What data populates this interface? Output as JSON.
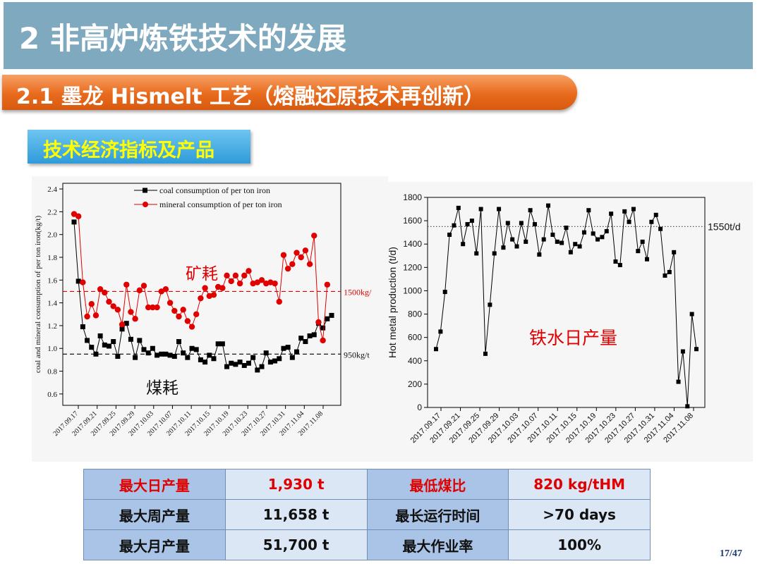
{
  "header": {
    "title": "2 非高炉炼铁技术的发展",
    "subtitle": "2.1 墨龙 Hismelt 工艺（熔融还原技术再创新）",
    "section_label": "技术经济指标及产品"
  },
  "colors": {
    "title_bar": "#7FA9BF",
    "subtitle_bar": "#E86A1C",
    "label_bar": "#2F9BDA",
    "label_text": "#FFFF00",
    "coal_series": "#000000",
    "mineral_series": "#E00000"
  },
  "chart_data": [
    {
      "type": "line",
      "ylabel": "coal and mineral consumption of per ton iron(kg/t)",
      "ylim": [
        0.5,
        2.45
      ],
      "yticks": [
        "0.6",
        "0.8",
        "1.0",
        "1.2",
        "1.4",
        "1.6",
        "1.8",
        "2.0",
        "2.2",
        "2.4"
      ],
      "xticks": [
        "2017.09.17",
        "2017.09.21",
        "2017.09.25",
        "2017.09.29",
        "2017.10.03",
        "2017.10.07",
        "2017.10.11",
        "2017.10.15",
        "2017.10.19",
        "2017.10.23",
        "2017.10.27",
        "2017.10.31",
        "2017.11.04",
        "2017.11.08"
      ],
      "legend_placement": "top-left",
      "series": [
        {
          "name": "coal consumption of per ton iron",
          "marker": "square",
          "color": "#000000",
          "values": [
            2.11,
            1.59,
            1.19,
            1.07,
            1.01,
            0.95,
            1.11,
            1.03,
            1.02,
            1.06,
            0.93,
            1.17,
            1.22,
            1.08,
            0.92,
            1.07,
            0.99,
            0.96,
            1.0,
            0.94,
            0.95,
            0.95,
            0.94,
            0.93,
            1.06,
            0.96,
            0.92,
            1.0,
            0.99,
            0.9,
            0.88,
            0.94,
            0.91,
            1.04,
            1.04,
            0.84,
            0.87,
            0.86,
            0.88,
            0.85,
            0.87,
            0.92,
            0.81,
            0.84,
            0.96,
            0.88,
            0.89,
            0.91,
            1.0,
            1.01,
            0.92,
            0.97,
            1.09,
            1.06,
            1.11,
            1.12,
            1.22,
            1.18,
            1.26,
            1.29
          ]
        },
        {
          "name": "mineral consumption of per ton iron",
          "marker": "circle",
          "color": "#E00000",
          "values": [
            2.18,
            2.16,
            1.58,
            1.28,
            1.39,
            1.29,
            1.52,
            1.49,
            1.41,
            1.37,
            1.34,
            1.21,
            1.56,
            1.32,
            1.26,
            1.51,
            1.55,
            1.36,
            1.36,
            1.36,
            1.5,
            1.52,
            1.4,
            1.33,
            1.28,
            1.34,
            1.24,
            1.19,
            1.3,
            1.44,
            1.53,
            1.46,
            1.47,
            1.54,
            1.53,
            1.64,
            1.59,
            1.64,
            1.57,
            1.64,
            1.68,
            1.57,
            1.58,
            1.6,
            1.57,
            1.58,
            1.57,
            1.41,
            1.82,
            1.7,
            1.74,
            1.84,
            1.8,
            1.86,
            1.74,
            1.99,
            1.23,
            1.07,
            1.56
          ]
        }
      ],
      "reference_lines": [
        {
          "value": 1.5,
          "label": "1500kg/",
          "color": "#E00000",
          "style": "dashed"
        },
        {
          "value": 0.95,
          "label": "950kg/t",
          "color": "#000000",
          "style": "dashed"
        }
      ],
      "annotations": [
        "矿耗",
        "煤耗"
      ]
    },
    {
      "type": "line",
      "ylabel": "Hot metal production (t/d)",
      "ylim": [
        0,
        1800
      ],
      "yticks": [
        "0",
        "200",
        "400",
        "600",
        "800",
        "1000",
        "1200",
        "1400",
        "1600",
        "1800"
      ],
      "xticks": [
        "2017.09.17",
        "2017.09.21",
        "2017.09.25",
        "2017.09.29",
        "2017.10.03",
        "2017.10.07",
        "2017.10.11",
        "2017.10.15",
        "2017.10.19",
        "2017.10.23",
        "2017.10.27",
        "2017.10.31",
        "2017.11.04",
        "2017.11.08"
      ],
      "series": [
        {
          "name": "",
          "marker": "square",
          "color": "#000000",
          "values": [
            500,
            650,
            990,
            1480,
            1560,
            1710,
            1400,
            1570,
            1600,
            1320,
            1700,
            460,
            880,
            1320,
            1700,
            1370,
            1580,
            1440,
            1380,
            1580,
            1420,
            1690,
            1570,
            1310,
            1440,
            1730,
            1480,
            1420,
            1410,
            1540,
            1330,
            1400,
            1380,
            1500,
            1690,
            1490,
            1440,
            1460,
            1510,
            1660,
            1250,
            1220,
            1680,
            1590,
            1700,
            1340,
            1420,
            1270,
            1590,
            1650,
            1530,
            1130,
            1160,
            1330,
            220,
            480,
            10,
            800,
            500
          ]
        }
      ],
      "reference_lines": [
        {
          "value": 1550,
          "label": "1550t/d",
          "color": "#555555",
          "style": "dotted"
        }
      ],
      "annotations": [
        "铁水日产量"
      ]
    }
  ],
  "metrics_table": {
    "rows": [
      [
        {
          "text": "最大日产量",
          "red": true
        },
        {
          "text": "1,930 t",
          "red": true
        },
        {
          "text": "最低煤比",
          "red": true
        },
        {
          "text": "820 kg/tHM",
          "red": true
        }
      ],
      [
        {
          "text": "最大周产量",
          "red": false
        },
        {
          "text": "11,658 t",
          "red": false
        },
        {
          "text": "最长运行时间",
          "red": false
        },
        {
          "text": ">70 days",
          "red": false
        }
      ],
      [
        {
          "text": "最大月产量",
          "red": false
        },
        {
          "text": "51,700 t",
          "red": false
        },
        {
          "text": "最大作业率",
          "red": false
        },
        {
          "text": "100%",
          "red": false
        }
      ]
    ]
  },
  "page_number": "17/47"
}
